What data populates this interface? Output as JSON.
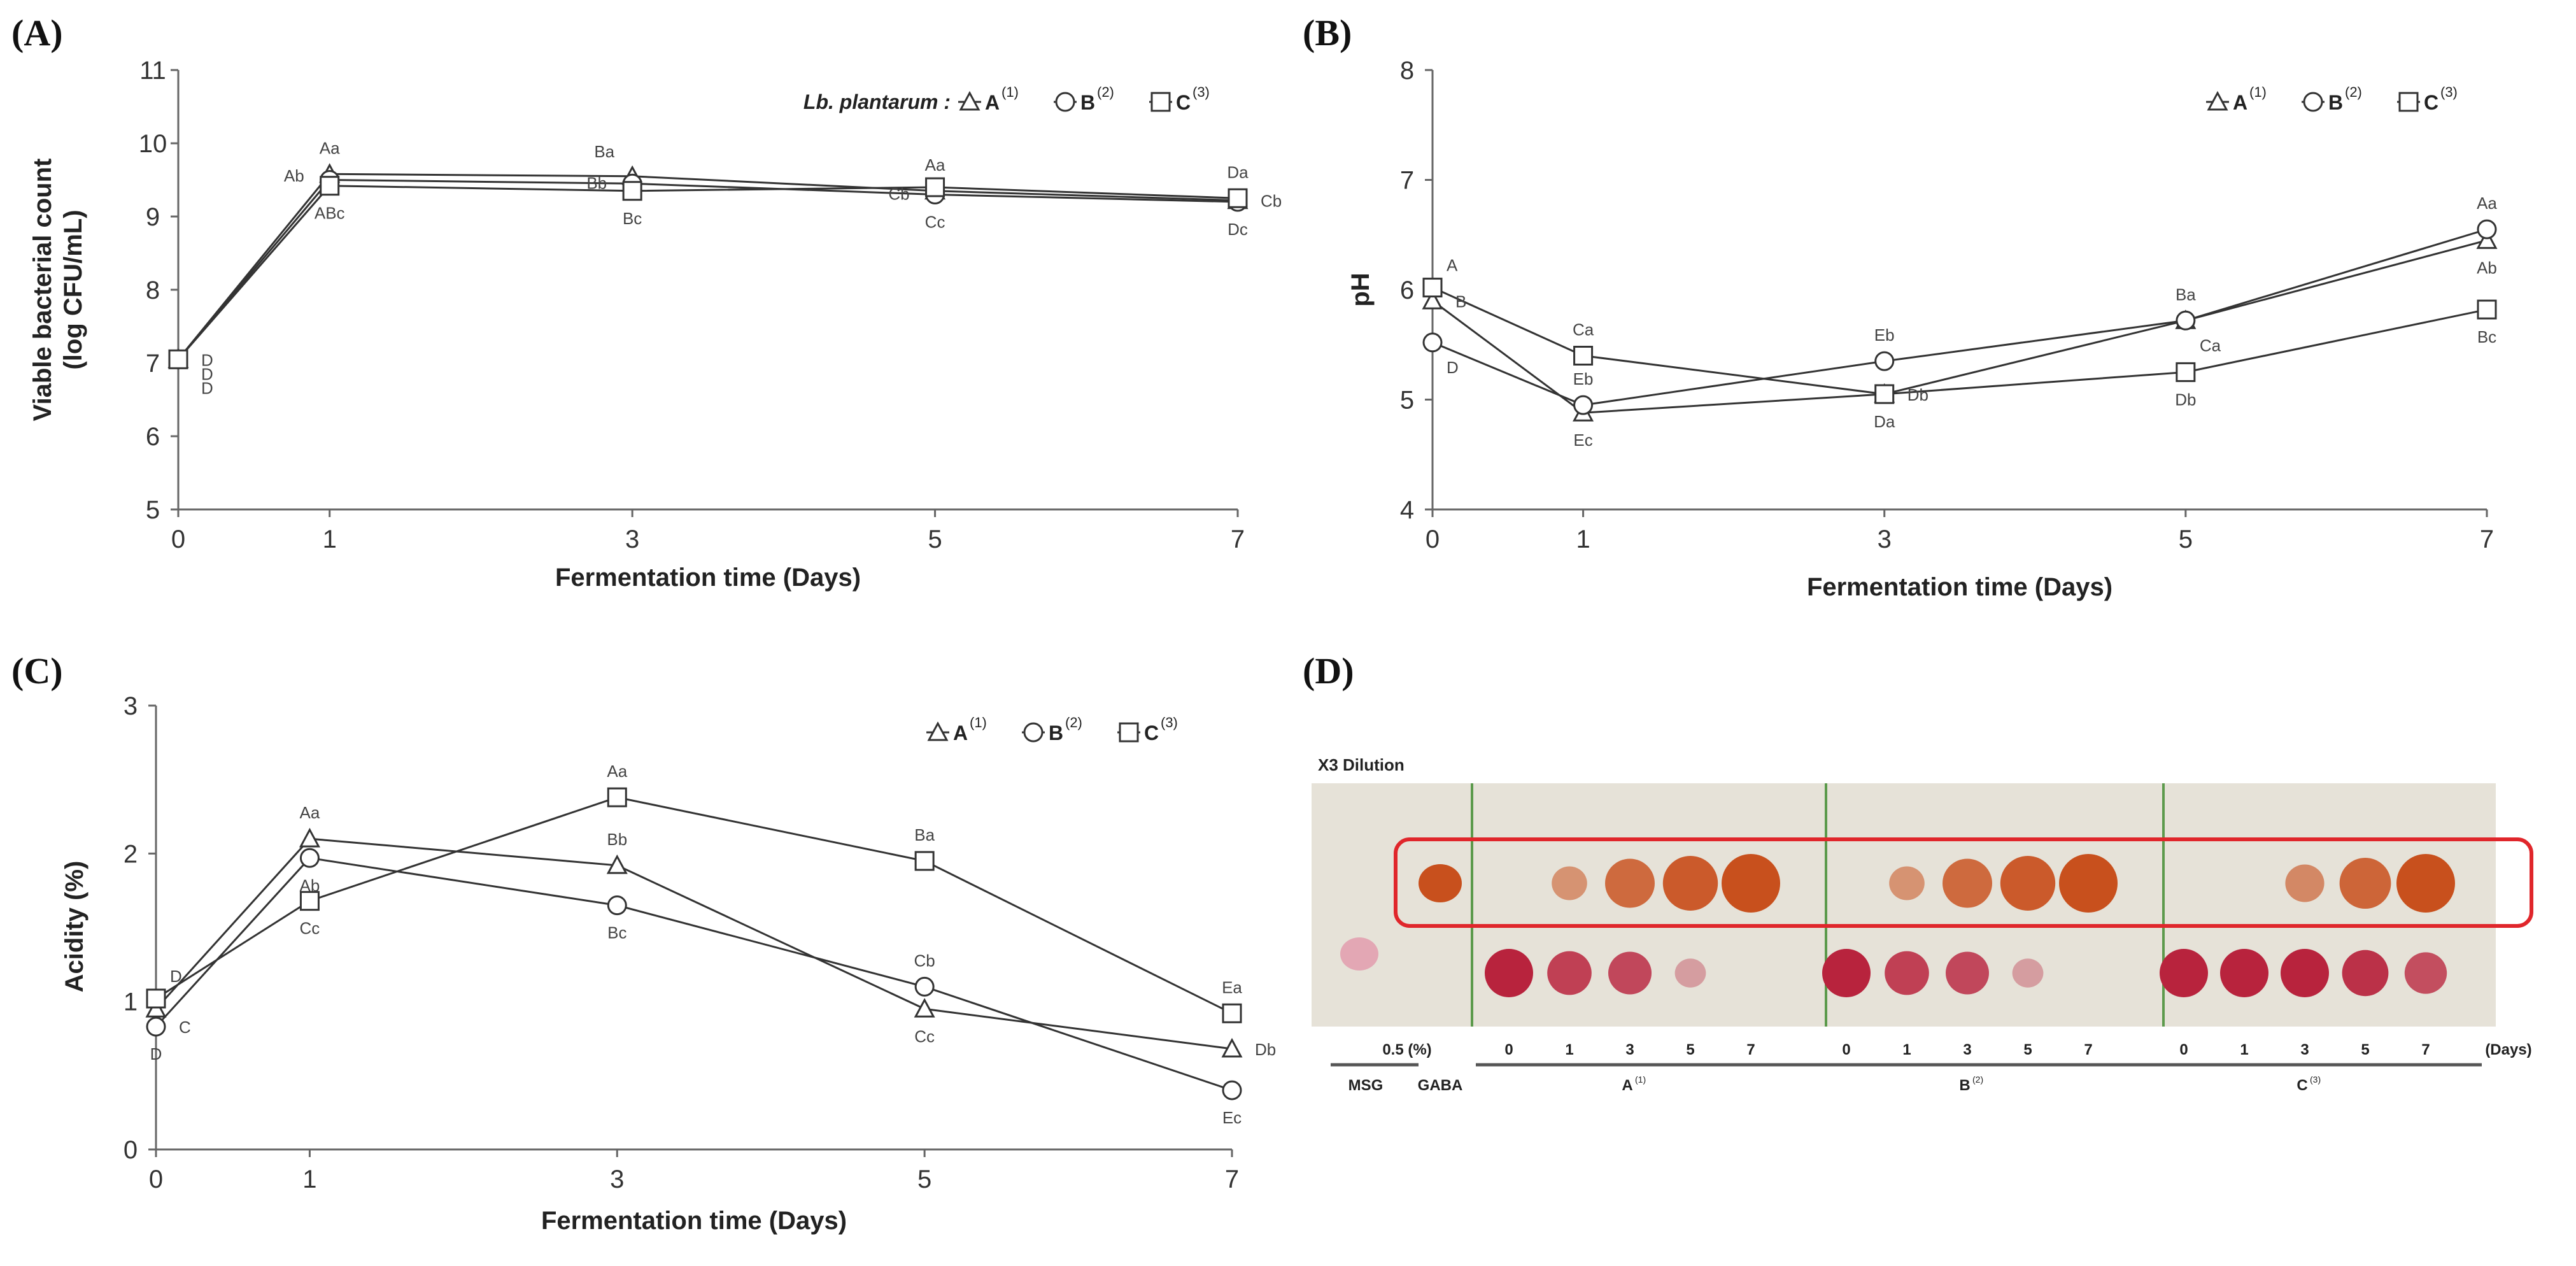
{
  "panels": {
    "a": {
      "letter": "(A)"
    },
    "b": {
      "letter": "(B)"
    },
    "c": {
      "letter": "(C)"
    },
    "d": {
      "letter": "(D)"
    }
  },
  "chart_data": [
    {
      "id": "A",
      "type": "line",
      "xlabel": "Fermentation time (Days)",
      "ylabel_line1": "Viable bacterial count",
      "ylabel_line2": "(log CFU/mL)",
      "x": [
        0,
        1,
        3,
        5,
        7
      ],
      "xlim": [
        0,
        7
      ],
      "ylim": [
        5,
        11
      ],
      "yticks": [
        5,
        6,
        7,
        8,
        9,
        10,
        11
      ],
      "legend": {
        "prefix": "Lb. plantarum :",
        "position": "top-right",
        "entries": [
          {
            "name": "A",
            "sup": "(1)",
            "marker": "triangle"
          },
          {
            "name": "B",
            "sup": "(2)",
            "marker": "circle"
          },
          {
            "name": "C",
            "sup": "(3)",
            "marker": "square"
          }
        ]
      },
      "series": [
        {
          "name": "A",
          "marker": "triangle",
          "values": [
            7.05,
            9.58,
            9.55,
            9.35,
            9.22
          ]
        },
        {
          "name": "B",
          "marker": "circle",
          "values": [
            7.05,
            9.5,
            9.45,
            9.3,
            9.2
          ]
        },
        {
          "name": "C",
          "marker": "square",
          "values": [
            7.05,
            9.42,
            9.35,
            9.4,
            9.25
          ]
        }
      ],
      "annotations": [
        {
          "x": 1,
          "y": 9.58,
          "text": "Aa",
          "pos": "above"
        },
        {
          "x": 1,
          "y": 9.55,
          "text": "Ab",
          "pos": "left"
        },
        {
          "x": 1,
          "y": 9.42,
          "text": "ABc",
          "pos": "below"
        },
        {
          "x": 3,
          "y": 9.55,
          "text": "Ba",
          "pos": "upleft"
        },
        {
          "x": 3,
          "y": 9.45,
          "text": "Bb",
          "pos": "left"
        },
        {
          "x": 3,
          "y": 9.35,
          "text": "Bc",
          "pos": "below"
        },
        {
          "x": 5,
          "y": 9.35,
          "text": "Aa",
          "pos": "above"
        },
        {
          "x": 5,
          "y": 9.3,
          "text": "Cb",
          "pos": "left"
        },
        {
          "x": 5,
          "y": 9.3,
          "text": "Cc",
          "pos": "below"
        },
        {
          "x": 7,
          "y": 9.25,
          "text": "Da",
          "pos": "above"
        },
        {
          "x": 7,
          "y": 9.22,
          "text": "Cb",
          "pos": "right"
        },
        {
          "x": 7,
          "y": 9.2,
          "text": "Dc",
          "pos": "below"
        },
        {
          "x": 0,
          "y": 7.05,
          "text": "D",
          "pos": "right"
        },
        {
          "x": 0,
          "y": 7.05,
          "text": "D",
          "pos": "right2"
        },
        {
          "x": 0,
          "y": 7.05,
          "text": "D",
          "pos": "right3"
        }
      ]
    },
    {
      "id": "B",
      "type": "line",
      "xlabel": "Fermentation time (Days)",
      "ylabel_line1": "pH",
      "x": [
        0,
        1,
        3,
        5,
        7
      ],
      "xlim": [
        0,
        7
      ],
      "ylim": [
        4,
        8
      ],
      "yticks": [
        4,
        5,
        6,
        7,
        8
      ],
      "legend": {
        "position": "top-right",
        "entries": [
          {
            "name": "A",
            "sup": "(1)",
            "marker": "triangle"
          },
          {
            "name": "B",
            "sup": "(2)",
            "marker": "circle"
          },
          {
            "name": "C",
            "sup": "(3)",
            "marker": "square"
          }
        ]
      },
      "series": [
        {
          "name": "A",
          "marker": "triangle",
          "values": [
            5.9,
            4.88,
            5.05,
            5.72,
            6.45
          ]
        },
        {
          "name": "B",
          "marker": "circle",
          "values": [
            5.52,
            4.95,
            5.35,
            5.72,
            6.55
          ]
        },
        {
          "name": "C",
          "marker": "square",
          "values": [
            6.02,
            5.4,
            5.05,
            5.25,
            5.82
          ]
        }
      ],
      "annotations": [
        {
          "x": 0,
          "y": 6.02,
          "text": "A",
          "pos": "upright"
        },
        {
          "x": 0,
          "y": 5.9,
          "text": "B",
          "pos": "right"
        },
        {
          "x": 0,
          "y": 5.52,
          "text": "D",
          "pos": "downright"
        },
        {
          "x": 1,
          "y": 5.4,
          "text": "Ca",
          "pos": "above"
        },
        {
          "x": 1,
          "y": 4.95,
          "text": "Eb",
          "pos": "above"
        },
        {
          "x": 1,
          "y": 4.88,
          "text": "Ec",
          "pos": "below"
        },
        {
          "x": 3,
          "y": 5.35,
          "text": "Eb",
          "pos": "above"
        },
        {
          "x": 3,
          "y": 5.05,
          "text": "Da",
          "pos": "below"
        },
        {
          "x": 3,
          "y": 5.05,
          "text": "Db",
          "pos": "right"
        },
        {
          "x": 5,
          "y": 5.72,
          "text": "Ba",
          "pos": "above"
        },
        {
          "x": 5,
          "y": 5.72,
          "text": "Ca",
          "pos": "downright"
        },
        {
          "x": 5,
          "y": 5.25,
          "text": "Db",
          "pos": "below"
        },
        {
          "x": 7,
          "y": 6.55,
          "text": "Aa",
          "pos": "above"
        },
        {
          "x": 7,
          "y": 6.45,
          "text": "Ab",
          "pos": "below"
        },
        {
          "x": 7,
          "y": 5.82,
          "text": "Bc",
          "pos": "below"
        }
      ]
    },
    {
      "id": "C",
      "type": "line",
      "xlabel": "Fermentation time (Days)",
      "ylabel_line1": "Acidity (%)",
      "x": [
        0,
        1,
        3,
        5,
        7
      ],
      "xlim": [
        0,
        7
      ],
      "ylim": [
        0,
        3
      ],
      "yticks": [
        0,
        1,
        2,
        3
      ],
      "legend": {
        "position": "top-right",
        "entries": [
          {
            "name": "A",
            "sup": "(1)",
            "marker": "triangle"
          },
          {
            "name": "B",
            "sup": "(2)",
            "marker": "circle"
          },
          {
            "name": "C",
            "sup": "(3)",
            "marker": "square"
          }
        ]
      },
      "series": [
        {
          "name": "A",
          "marker": "triangle",
          "values": [
            0.95,
            2.1,
            1.92,
            0.95,
            0.68
          ]
        },
        {
          "name": "B",
          "marker": "circle",
          "values": [
            0.83,
            1.97,
            1.65,
            1.1,
            0.4
          ]
        },
        {
          "name": "C",
          "marker": "square",
          "values": [
            1.02,
            1.68,
            2.38,
            1.95,
            0.92
          ]
        }
      ],
      "annotations": [
        {
          "x": 0,
          "y": 1.02,
          "text": "D",
          "pos": "upright"
        },
        {
          "x": 0,
          "y": 0.83,
          "text": "C",
          "pos": "right"
        },
        {
          "x": 0,
          "y": 0.83,
          "text": "D",
          "pos": "below"
        },
        {
          "x": 1,
          "y": 2.1,
          "text": "Aa",
          "pos": "above"
        },
        {
          "x": 1,
          "y": 1.97,
          "text": "Ab",
          "pos": "below"
        },
        {
          "x": 1,
          "y": 1.68,
          "text": "Cc",
          "pos": "below"
        },
        {
          "x": 3,
          "y": 2.38,
          "text": "Aa",
          "pos": "above"
        },
        {
          "x": 3,
          "y": 1.92,
          "text": "Bb",
          "pos": "above"
        },
        {
          "x": 3,
          "y": 1.65,
          "text": "Bc",
          "pos": "below"
        },
        {
          "x": 5,
          "y": 1.95,
          "text": "Ba",
          "pos": "above"
        },
        {
          "x": 5,
          "y": 1.1,
          "text": "Cb",
          "pos": "above"
        },
        {
          "x": 5,
          "y": 0.95,
          "text": "Cc",
          "pos": "below"
        },
        {
          "x": 7,
          "y": 0.92,
          "text": "Ea",
          "pos": "above"
        },
        {
          "x": 7,
          "y": 0.68,
          "text": "Db",
          "pos": "right"
        },
        {
          "x": 7,
          "y": 0.4,
          "text": "Ec",
          "pos": "below"
        }
      ]
    },
    {
      "id": "D",
      "type": "table",
      "title": "X3 Dilution",
      "concentration_label": "0.5 (%)",
      "days_unit": "(Days)",
      "standards": [
        "MSG",
        "GABA"
      ],
      "groups": [
        {
          "name": "A",
          "sup": "(1)",
          "days": [
            "0",
            "1",
            "3",
            "5",
            "7"
          ]
        },
        {
          "name": "B",
          "sup": "(2)",
          "days": [
            "0",
            "1",
            "3",
            "5",
            "7"
          ]
        },
        {
          "name": "C",
          "sup": "(3)",
          "days": [
            "0",
            "1",
            "3",
            "5",
            "7"
          ]
        }
      ],
      "gaba_spot_intensity": {
        "A": [
          0,
          0.35,
          0.75,
          0.9,
          1.0
        ],
        "B": [
          0,
          0.35,
          0.75,
          0.9,
          1.0
        ],
        "C": [
          0,
          0,
          0.45,
          0.8,
          1.0
        ]
      },
      "msg_spot_intensity": {
        "A": [
          1.0,
          0.8,
          0.75,
          0.15,
          0
        ],
        "B": [
          1.0,
          0.8,
          0.75,
          0.15,
          0
        ],
        "C": [
          1.0,
          1.0,
          1.0,
          0.9,
          0.7
        ]
      },
      "colors": {
        "plate": "#e6e2d8",
        "gaba": "#c8501d",
        "msg": "#b8233d",
        "highlight": "#e0262b",
        "divider": "#5c9a4c"
      }
    }
  ]
}
